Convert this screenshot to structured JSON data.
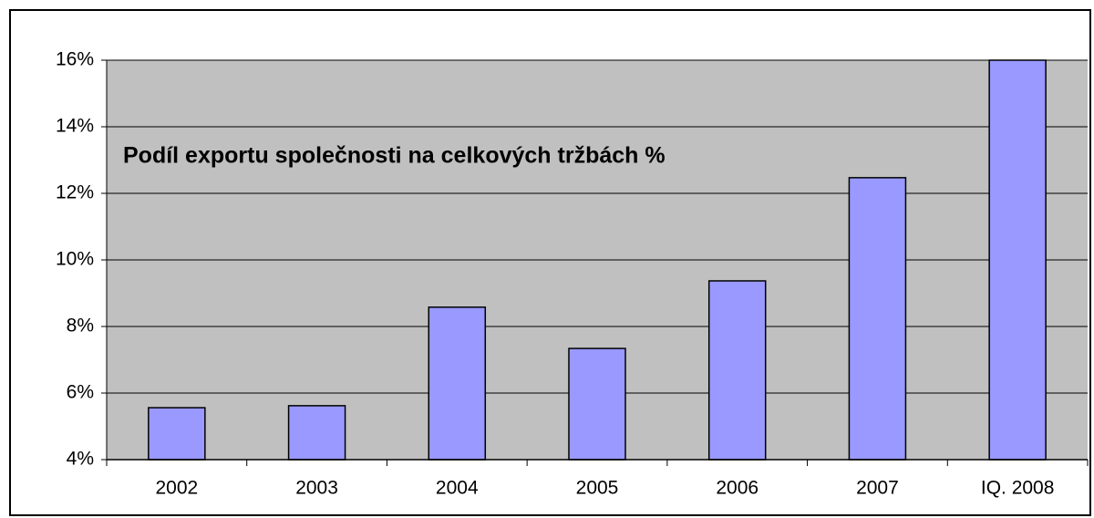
{
  "chart_data": {
    "type": "bar",
    "title": "Podíl exportu společnosti na celkových tržbách %",
    "categories": [
      "2002",
      "2003",
      "2004",
      "2005",
      "2006",
      "2007",
      "IQ. 2008"
    ],
    "values": [
      5.56,
      5.62,
      8.58,
      7.34,
      9.37,
      12.47,
      16
    ],
    "color": "#9999ff",
    "ylim": [
      4,
      16
    ],
    "yticks": [
      {
        "value": 4,
        "label": "4%"
      },
      {
        "value": 6,
        "label": "6%"
      },
      {
        "value": 8,
        "label": "8%"
      },
      {
        "value": 10,
        "label": "10%"
      },
      {
        "value": 12,
        "label": "12%"
      },
      {
        "value": 14,
        "label": "14%"
      },
      {
        "value": 16,
        "label": "16%"
      }
    ],
    "grid": true
  }
}
